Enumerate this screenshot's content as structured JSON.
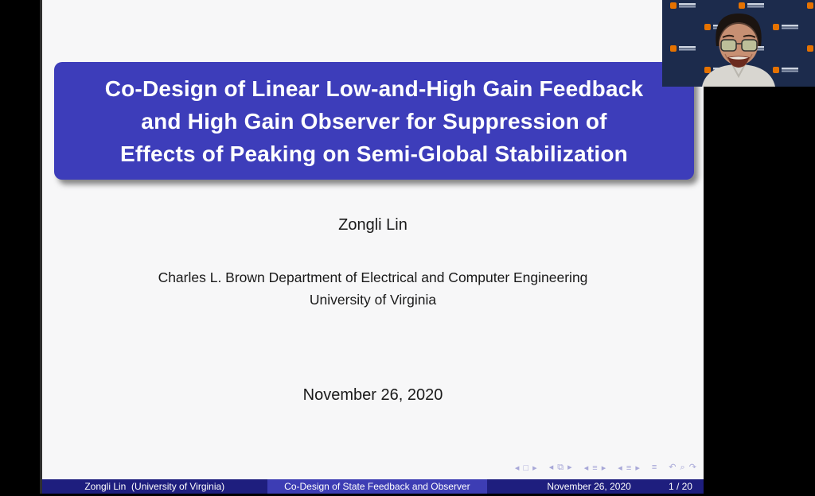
{
  "colors": {
    "letterbox": "#000000",
    "slide_bg": "#f7f7f8",
    "title_box": "#3d3dba",
    "title_text": "#ffffff",
    "body_text": "#1a1a1a",
    "nav_symbols": "#a8a8d8",
    "footer_dark": "#1e1e7e",
    "footer_mid": "#3d3db4",
    "footer_text": "#ffffff",
    "webcam_backdrop": "#1c2b4c",
    "uva_orange": "#e57200"
  },
  "slide": {
    "title_lines": [
      "Co-Design of Linear Low-and-High Gain Feedback",
      "and High Gain Observer for Suppression of",
      "Effects of Peaking on Semi-Global Stabilization"
    ],
    "author": "Zongli Lin",
    "affiliation_lines": [
      "Charles L. Brown Department of Electrical and Computer Engineering",
      "University of Virginia"
    ],
    "date": "November 26, 2020"
  },
  "nav": {
    "groups": [
      "◂ □ ▸",
      "◂ ⧉ ▸",
      "◂ ≡ ▸",
      "◂ ≡ ▸",
      "≡",
      "↶ ⌕ ↷"
    ]
  },
  "footer": {
    "author_short": "Zongli Lin  (University of Virginia)",
    "title_short": "Co-Design of State Feedback and Observer",
    "date": "November 26, 2020",
    "page": "1 / 20"
  }
}
